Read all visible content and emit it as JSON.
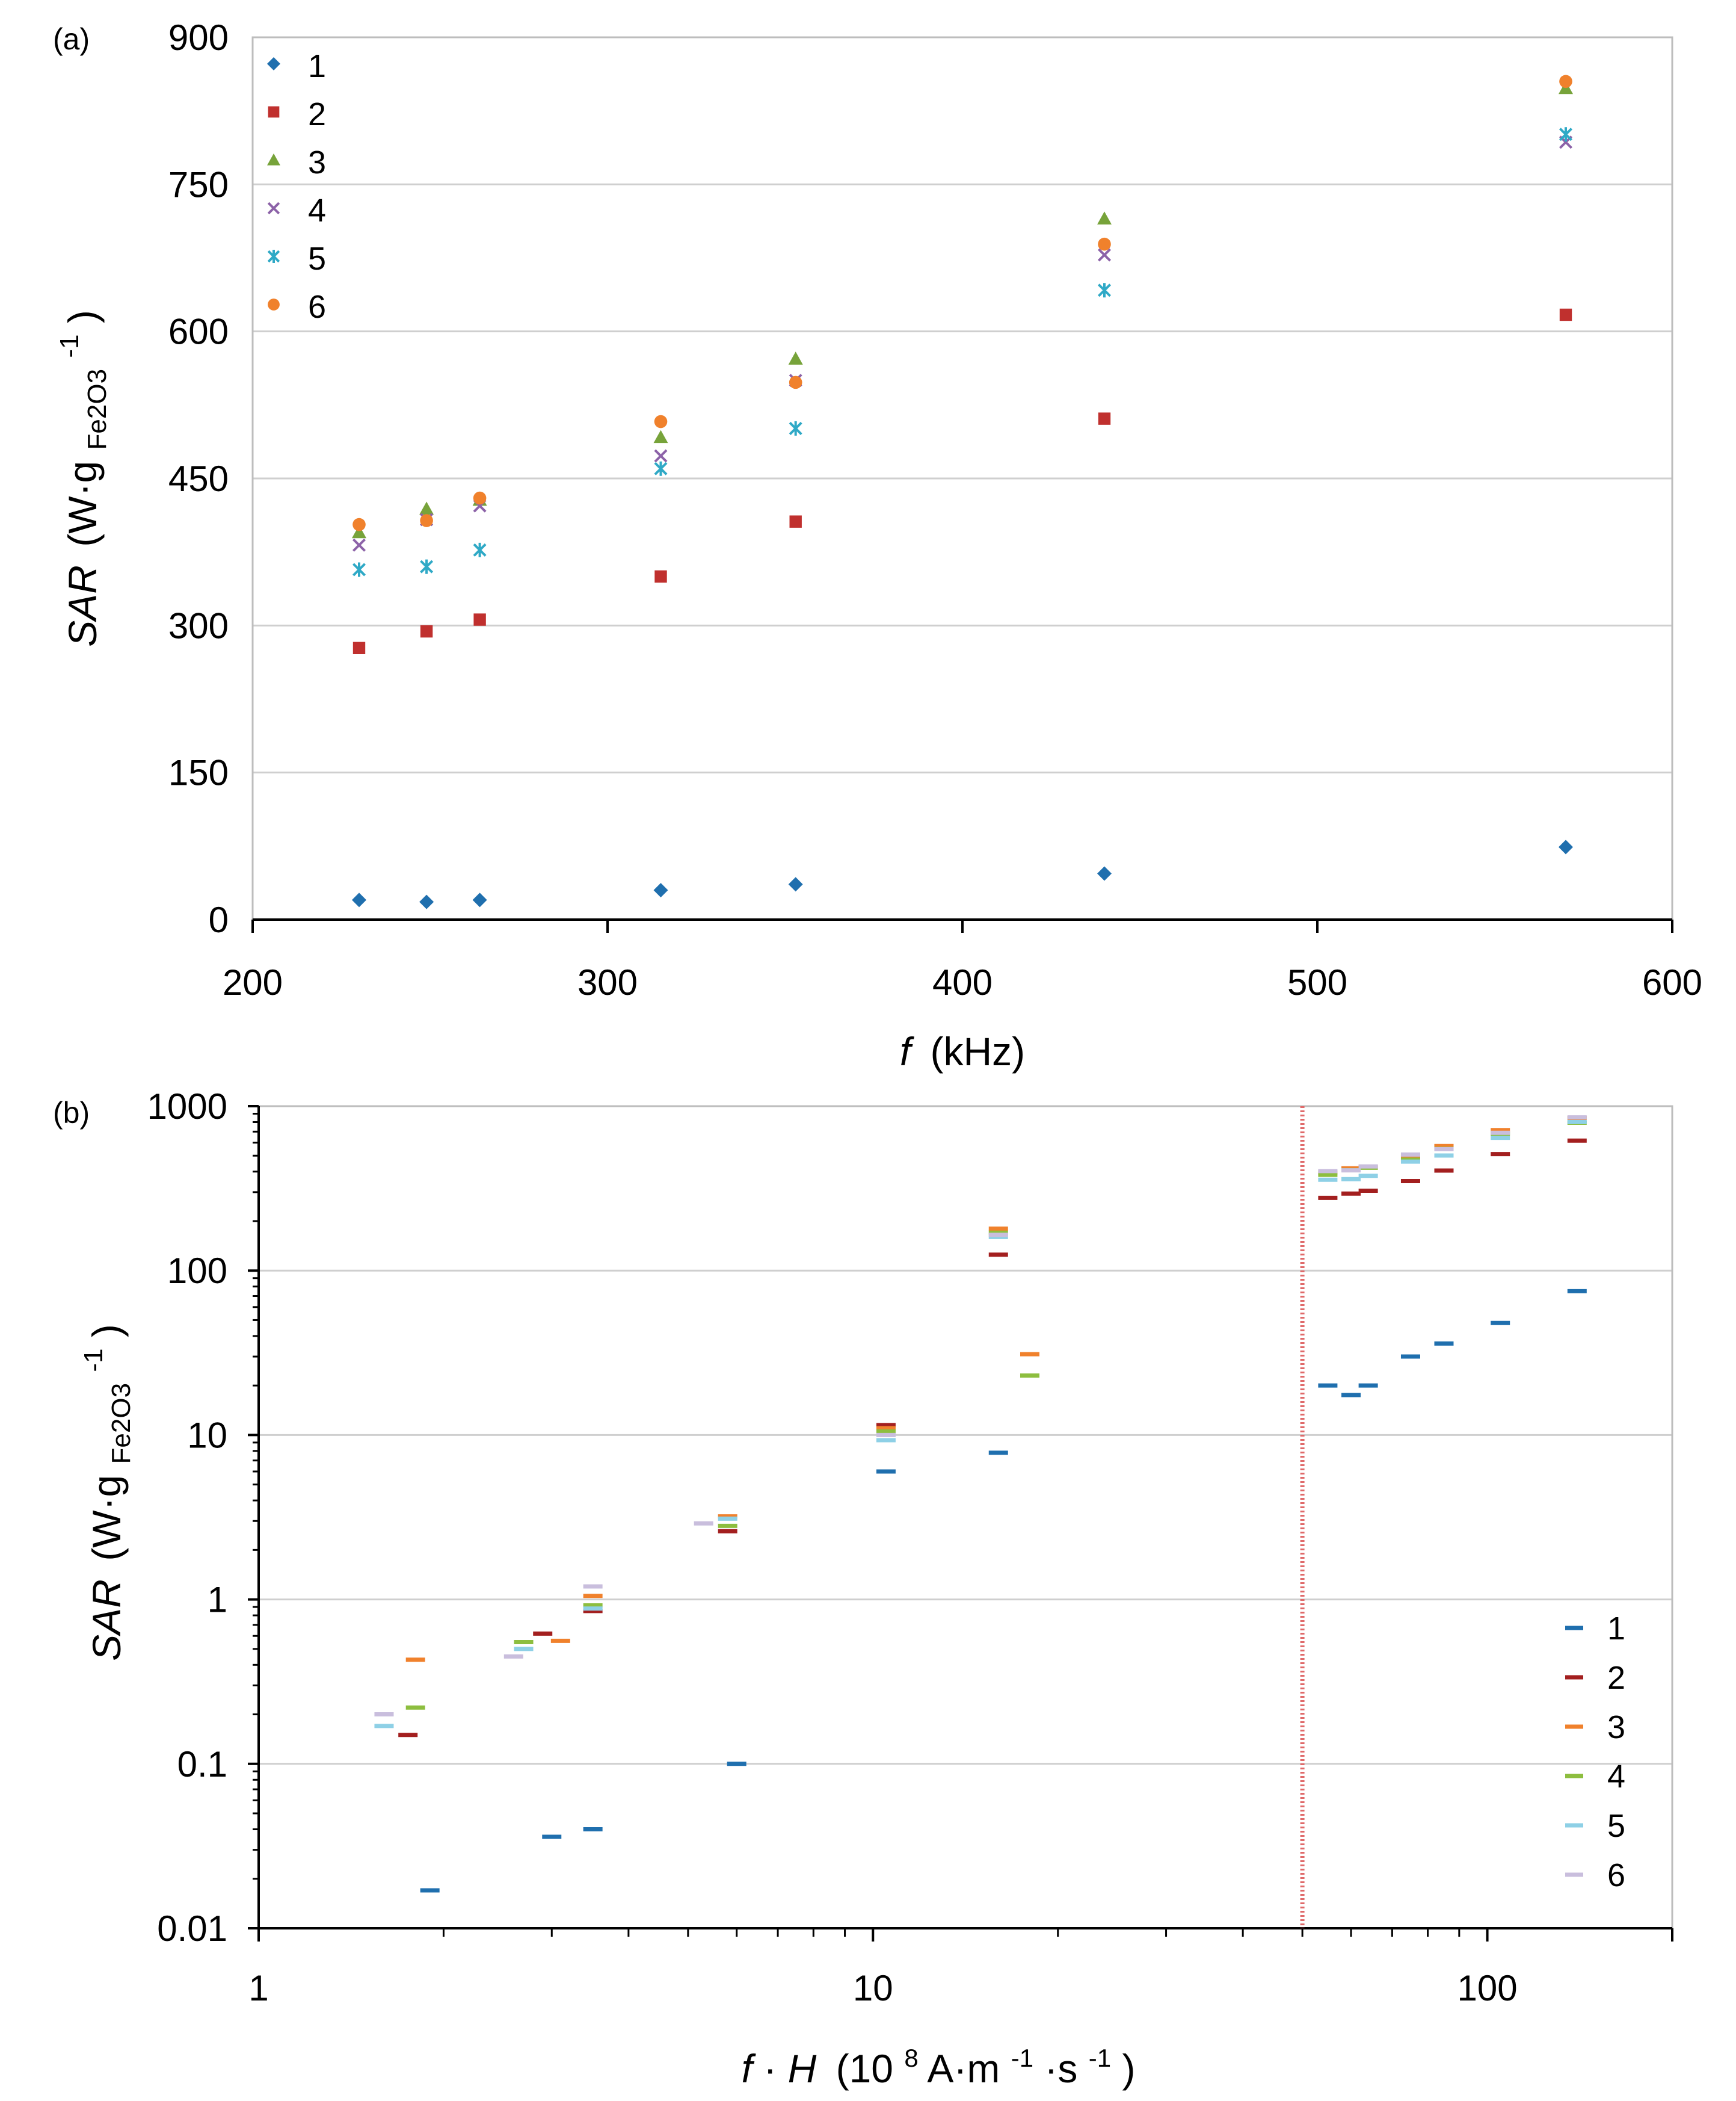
{
  "chart_data": [
    {
      "panel": "(a)",
      "type": "scatter",
      "xlabel_italic": "f",
      "xlabel_rest": "(kHz)",
      "ylabel_italic": "SAR",
      "ylabel_rest": "(W·g",
      "ylabel_sub": "Fe2O3",
      "ylabel_sup": "-1",
      "ylabel_close": ")",
      "xlim": [
        200,
        600
      ],
      "ylim": [
        0,
        900
      ],
      "xticks": [
        200,
        300,
        400,
        500,
        600
      ],
      "yticks": [
        0,
        150,
        300,
        450,
        600,
        750,
        900
      ],
      "grid": "horizontal",
      "legend_position": "top-left",
      "x": [
        230,
        249,
        264,
        315,
        353,
        440,
        570
      ],
      "series": [
        {
          "name": "1",
          "color": "#1F6FAE",
          "marker": "diamond",
          "values": [
            20,
            18,
            20,
            30,
            36,
            47,
            74
          ]
        },
        {
          "name": "2",
          "color": "#C0302E",
          "marker": "square",
          "values": [
            277,
            294,
            306,
            350,
            406,
            511,
            617
          ]
        },
        {
          "name": "3",
          "color": "#77A33A",
          "marker": "triangle",
          "values": [
            395,
            419,
            428,
            492,
            572,
            715,
            848
          ]
        },
        {
          "name": "4",
          "color": "#8C62A8",
          "marker": "x",
          "values": [
            382,
            408,
            422,
            473,
            550,
            678,
            793
          ]
        },
        {
          "name": "5",
          "color": "#2FA9C6",
          "marker": "star",
          "values": [
            357,
            360,
            377,
            460,
            501,
            642,
            801
          ]
        },
        {
          "name": "6",
          "color": "#F0812C",
          "marker": "circle",
          "values": [
            403,
            407,
            430,
            508,
            548,
            689,
            855
          ]
        }
      ]
    },
    {
      "panel": "(b)",
      "type": "scatter",
      "xscale": "log",
      "yscale": "log",
      "xlabel_italic_f": "f",
      "xlabel_dot": "·",
      "xlabel_italic_h": "H",
      "xlabel_pre": "(10",
      "xlabel_sup8": "8",
      "xlabel_mid1": " A·m",
      "xlabel_sup1": "-1",
      "xlabel_mid2": "·s",
      "xlabel_sup2": "-1",
      "xlabel_close": ")",
      "ylabel_italic": "SAR",
      "ylabel_rest": "(W·g",
      "ylabel_sub": "Fe2O3",
      "ylabel_sup": "-1",
      "ylabel_close": ")",
      "xlim": [
        1,
        200
      ],
      "ylim": [
        0.01,
        1000
      ],
      "xtick_labels": [
        {
          "v": 1,
          "t": "1"
        },
        {
          "v": 10,
          "t": "10"
        },
        {
          "v": 100,
          "t": "100"
        }
      ],
      "ytick_labels": [
        {
          "v": 0.01,
          "t": "0.01"
        },
        {
          "v": 0.1,
          "t": "0.1"
        },
        {
          "v": 1,
          "t": "1"
        },
        {
          "v": 10,
          "t": "10"
        },
        {
          "v": 100,
          "t": "100"
        },
        {
          "v": 1000,
          "t": "1000"
        }
      ],
      "reference_line_x": 50,
      "reference_line_color": "#E06A6A",
      "legend_position": "bottom-right",
      "series": [
        {
          "name": "1",
          "color": "#1F6FAE",
          "points": [
            [
              1.9,
              0.017
            ],
            [
              3.0,
              0.036
            ],
            [
              3.5,
              0.04
            ],
            [
              6.0,
              0.1
            ],
            [
              10.5,
              6.0
            ],
            [
              16.0,
              7.8
            ],
            [
              55,
              20
            ],
            [
              60,
              17.5
            ],
            [
              64,
              20
            ],
            [
              75,
              30
            ],
            [
              85,
              36
            ],
            [
              105,
              48
            ],
            [
              140,
              75
            ]
          ]
        },
        {
          "name": "2",
          "color": "#A31F1F",
          "points": [
            [
              1.75,
              0.15
            ],
            [
              2.9,
              0.62
            ],
            [
              3.5,
              0.85
            ],
            [
              5.8,
              2.6
            ],
            [
              10.5,
              11.5
            ],
            [
              16.0,
              125
            ],
            [
              55,
              277
            ],
            [
              60,
              294
            ],
            [
              64,
              306
            ],
            [
              75,
              350
            ],
            [
              85,
              406
            ],
            [
              105,
              511
            ],
            [
              140,
              617
            ]
          ]
        },
        {
          "name": "3",
          "color": "#F0812C",
          "points": [
            [
              1.8,
              0.43
            ],
            [
              3.1,
              0.56
            ],
            [
              3.5,
              1.05
            ],
            [
              5.8,
              3.2
            ],
            [
              10.5,
              11.0
            ],
            [
              16.0,
              180
            ],
            [
              18.0,
              31
            ],
            [
              55,
              395
            ],
            [
              60,
              419
            ],
            [
              64,
              428
            ],
            [
              75,
              492
            ],
            [
              85,
              572
            ],
            [
              105,
              715
            ],
            [
              140,
              848
            ]
          ]
        },
        {
          "name": "4",
          "color": "#8DBE3F",
          "points": [
            [
              1.8,
              0.22
            ],
            [
              2.7,
              0.55
            ],
            [
              3.5,
              0.92
            ],
            [
              5.8,
              2.8
            ],
            [
              10.5,
              10.5
            ],
            [
              16.0,
              170
            ],
            [
              18.0,
              23
            ],
            [
              55,
              382
            ],
            [
              60,
              408
            ],
            [
              64,
              422
            ],
            [
              75,
              473
            ],
            [
              85,
              550
            ],
            [
              105,
              678
            ],
            [
              140,
              793
            ]
          ]
        },
        {
          "name": "5",
          "color": "#8ED0E6",
          "points": [
            [
              1.6,
              0.17
            ],
            [
              2.7,
              0.5
            ],
            [
              3.5,
              0.88
            ],
            [
              5.8,
              3.1
            ],
            [
              10.5,
              9.3
            ],
            [
              16.0,
              160
            ],
            [
              55,
              357
            ],
            [
              60,
              360
            ],
            [
              64,
              377
            ],
            [
              75,
              460
            ],
            [
              85,
              501
            ],
            [
              105,
              642
            ],
            [
              140,
              801
            ]
          ]
        },
        {
          "name": "6",
          "color": "#C9BEDD",
          "points": [
            [
              1.6,
              0.2
            ],
            [
              2.6,
              0.45
            ],
            [
              3.5,
              1.2
            ],
            [
              5.3,
              2.9
            ],
            [
              10.5,
              10.0
            ],
            [
              16.0,
              165
            ],
            [
              55,
              403
            ],
            [
              60,
              407
            ],
            [
              64,
              430
            ],
            [
              75,
              508
            ],
            [
              85,
              548
            ],
            [
              105,
              689
            ],
            [
              140,
              855
            ]
          ]
        }
      ]
    }
  ]
}
